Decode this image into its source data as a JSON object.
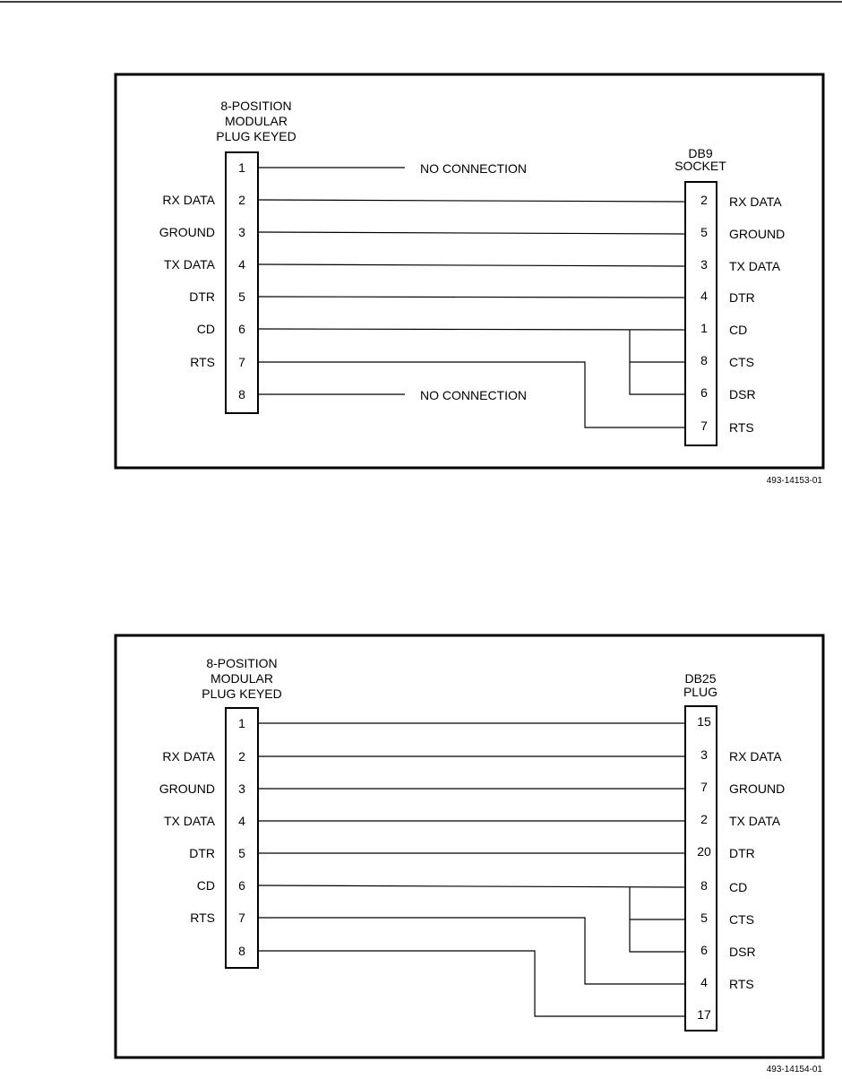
{
  "diagrams": [
    {
      "left_header": [
        "8-POSITION",
        "MODULAR",
        "PLUG KEYED"
      ],
      "right_header": [
        "DB9",
        "SOCKET"
      ],
      "left_pins": [
        {
          "pin": "1",
          "label": ""
        },
        {
          "pin": "2",
          "label": "RX DATA"
        },
        {
          "pin": "3",
          "label": "GROUND"
        },
        {
          "pin": "4",
          "label": "TX DATA"
        },
        {
          "pin": "5",
          "label": "DTR"
        },
        {
          "pin": "6",
          "label": "CD"
        },
        {
          "pin": "7",
          "label": "RTS"
        },
        {
          "pin": "8",
          "label": ""
        }
      ],
      "right_pins": [
        {
          "pin": "2",
          "label": "RX DATA"
        },
        {
          "pin": "5",
          "label": "GROUND"
        },
        {
          "pin": "3",
          "label": "TX DATA"
        },
        {
          "pin": "4",
          "label": "DTR"
        },
        {
          "pin": "1",
          "label": "CD"
        },
        {
          "pin": "8",
          "label": "CTS"
        },
        {
          "pin": "6",
          "label": "DSR"
        },
        {
          "pin": "7",
          "label": "RTS"
        }
      ],
      "no_connection_label": "NO CONNECTION",
      "figure_id": "493-14153-01"
    },
    {
      "left_header": [
        "8-POSITION",
        "MODULAR",
        "PLUG KEYED"
      ],
      "right_header": [
        "DB25",
        "PLUG"
      ],
      "left_pins": [
        {
          "pin": "1",
          "label": ""
        },
        {
          "pin": "2",
          "label": "RX DATA"
        },
        {
          "pin": "3",
          "label": "GROUND"
        },
        {
          "pin": "4",
          "label": "TX DATA"
        },
        {
          "pin": "5",
          "label": "DTR"
        },
        {
          "pin": "6",
          "label": "CD"
        },
        {
          "pin": "7",
          "label": "RTS"
        },
        {
          "pin": "8",
          "label": ""
        }
      ],
      "right_pins": [
        {
          "pin": "15",
          "label": ""
        },
        {
          "pin": "3",
          "label": "RX DATA"
        },
        {
          "pin": "7",
          "label": "GROUND"
        },
        {
          "pin": "2",
          "label": "TX DATA"
        },
        {
          "pin": "20",
          "label": "DTR"
        },
        {
          "pin": "8",
          "label": "CD"
        },
        {
          "pin": "5",
          "label": "CTS"
        },
        {
          "pin": "6",
          "label": "DSR"
        },
        {
          "pin": "4",
          "label": "RTS"
        },
        {
          "pin": "17",
          "label": ""
        }
      ],
      "figure_id": "493-14154-01"
    }
  ]
}
